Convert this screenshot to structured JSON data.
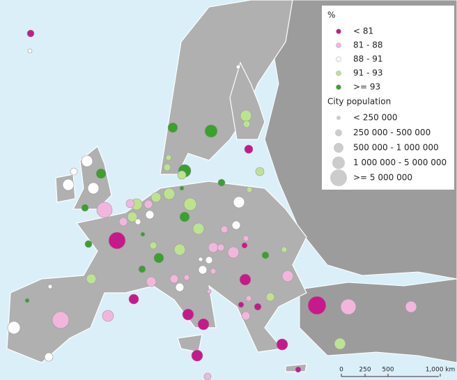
{
  "legend": {
    "title": "%",
    "items": [
      {
        "label": "< 81",
        "color": "#c8198a"
      },
      {
        "label": "81 - 88",
        "color": "#f2b6dd"
      },
      {
        "label": "88 - 91",
        "color": "#ffffff"
      },
      {
        "label": "91 - 93",
        "color": "#bde38f"
      },
      {
        "label": ">= 93",
        "color": "#3c9f30"
      }
    ],
    "size_title": "City population",
    "sizes": [
      "< 250 000",
      "250 000 - 500 000",
      "500 000 - 1 000 000",
      "1 000 000 - 5 000 000",
      ">= 5 000 000"
    ]
  },
  "scale": {
    "labels": [
      "0",
      "250",
      "500",
      "1,000 km"
    ]
  }
}
